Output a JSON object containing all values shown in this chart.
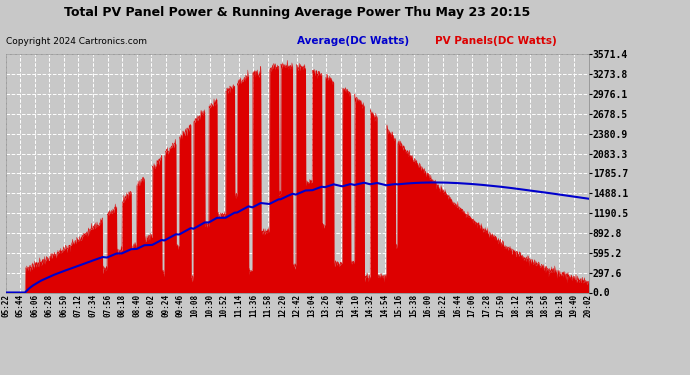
{
  "title": "Total PV Panel Power & Running Average Power Thu May 23 20:15",
  "copyright": "Copyright 2024 Cartronics.com",
  "legend_average": "Average(DC Watts)",
  "legend_pv": "PV Panels(DC Watts)",
  "y_max": 3571.4,
  "y_min": 0.0,
  "y_ticks": [
    0.0,
    297.6,
    595.2,
    892.8,
    1190.5,
    1488.1,
    1785.7,
    2083.3,
    2380.9,
    2678.5,
    2976.1,
    3273.8,
    3571.4
  ],
  "background_color": "#c8c8c8",
  "plot_bg_color": "#c8c8c8",
  "grid_color": "#ffffff",
  "pv_color": "#dd0000",
  "avg_color": "#0000cc",
  "title_color": "#000000",
  "copyright_color": "#000000",
  "x_tick_labels": [
    "05:22",
    "05:44",
    "06:06",
    "06:28",
    "06:50",
    "07:12",
    "07:34",
    "07:56",
    "08:18",
    "08:40",
    "09:02",
    "09:24",
    "09:46",
    "10:08",
    "10:30",
    "10:52",
    "11:14",
    "11:36",
    "11:58",
    "12:20",
    "12:42",
    "13:04",
    "13:26",
    "13:48",
    "14:10",
    "14:32",
    "14:54",
    "15:16",
    "15:38",
    "16:00",
    "16:22",
    "16:44",
    "17:06",
    "17:28",
    "17:50",
    "18:12",
    "18:34",
    "18:56",
    "19:18",
    "19:40",
    "20:02"
  ]
}
